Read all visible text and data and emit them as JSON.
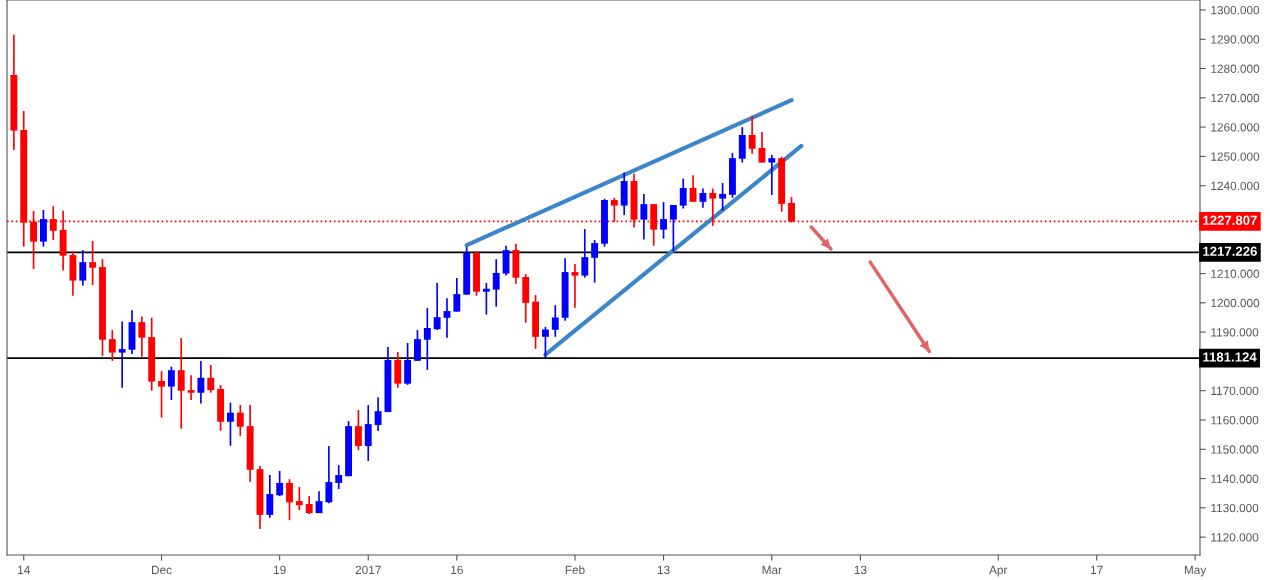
{
  "chart_data": {
    "type": "candlestick",
    "categories": [
      null,
      "14",
      null,
      null,
      null,
      null,
      null,
      null,
      null,
      null,
      null,
      null,
      null,
      null,
      null,
      "Dec",
      null,
      null,
      null,
      null,
      null,
      null,
      null,
      null,
      null,
      null,
      null,
      "19",
      null,
      null,
      null,
      null,
      null,
      null,
      null,
      null,
      "2017",
      null,
      null,
      null,
      null,
      null,
      null,
      null,
      null,
      "16",
      null,
      null,
      null,
      null,
      null,
      null,
      null,
      null,
      null,
      null,
      null,
      "Feb",
      null,
      null,
      null,
      null,
      null,
      null,
      null,
      null,
      "13",
      null,
      null,
      null,
      null,
      null,
      null,
      null,
      null,
      null,
      null,
      "Mar",
      null,
      null,
      null,
      null,
      null,
      null,
      null,
      null,
      "13",
      null,
      null,
      null,
      null,
      null,
      null,
      null,
      null,
      null,
      null,
      null,
      null,
      null,
      "Apr",
      null,
      null,
      null,
      null,
      null,
      null,
      null,
      null,
      null,
      "17",
      null,
      null,
      null,
      null,
      null,
      null,
      null,
      null,
      null,
      "May"
    ],
    "ohlc": [
      [
        1277.8,
        1291.5,
        1252.2,
        1258.8
      ],
      [
        1259.0,
        1265.5,
        1219.2,
        1227.4
      ],
      [
        1227.7,
        1231.4,
        1211.5,
        1220.9
      ],
      [
        1220.9,
        1231.7,
        1219.2,
        1228.6
      ],
      [
        1228.6,
        1233.0,
        1221.4,
        1224.6
      ],
      [
        1224.9,
        1231.4,
        1211.0,
        1216.1
      ],
      [
        1216.3,
        1217.5,
        1202.4,
        1207.6
      ],
      [
        1207.6,
        1218.0,
        1205.9,
        1213.9
      ],
      [
        1213.9,
        1221.1,
        1206.1,
        1212.0
      ],
      [
        1212.2,
        1214.9,
        1181.9,
        1187.4
      ],
      [
        1187.6,
        1190.7,
        1180.2,
        1183.0
      ],
      [
        1183.0,
        1193.6,
        1171.0,
        1184.2
      ],
      [
        1184.0,
        1197.5,
        1182.5,
        1193.4
      ],
      [
        1193.4,
        1195.3,
        1181.6,
        1188.1
      ],
      [
        1188.3,
        1194.9,
        1170.0,
        1173.1
      ],
      [
        1173.3,
        1176.7,
        1160.8,
        1171.4
      ],
      [
        1171.4,
        1178.2,
        1166.8,
        1177.0
      ],
      [
        1177.0,
        1188.0,
        1157.0,
        1170.0
      ],
      [
        1170.2,
        1175.3,
        1166.8,
        1169.3
      ],
      [
        1169.3,
        1180.1,
        1165.6,
        1174.4
      ],
      [
        1174.4,
        1178.8,
        1169.3,
        1170.2
      ],
      [
        1170.6,
        1171.9,
        1156.3,
        1159.4
      ],
      [
        1159.4,
        1165.9,
        1151.2,
        1162.5
      ],
      [
        1162.5,
        1165.1,
        1154.6,
        1157.7
      ],
      [
        1157.9,
        1165.1,
        1138.9,
        1143.0
      ],
      [
        1143.2,
        1144.3,
        1122.8,
        1127.6
      ],
      [
        1127.6,
        1141.2,
        1126.6,
        1134.7
      ],
      [
        1134.3,
        1142.6,
        1134.0,
        1138.5
      ],
      [
        1138.5,
        1139.8,
        1125.8,
        1131.9
      ],
      [
        1132.3,
        1137.1,
        1129.2,
        1130.9
      ],
      [
        1131.3,
        1134.0,
        1127.9,
        1128.2
      ],
      [
        1128.2,
        1135.7,
        1128.2,
        1132.3
      ],
      [
        1131.9,
        1151.1,
        1131.6,
        1138.8
      ],
      [
        1138.5,
        1144.6,
        1136.4,
        1141.2
      ],
      [
        1140.8,
        1159.6,
        1140.8,
        1157.9
      ],
      [
        1157.9,
        1163.4,
        1149.7,
        1151.1
      ],
      [
        1151.1,
        1165.1,
        1146.0,
        1158.6
      ],
      [
        1158.3,
        1167.8,
        1156.2,
        1163.0
      ],
      [
        1162.7,
        1184.9,
        1162.7,
        1180.5
      ],
      [
        1180.5,
        1183.2,
        1171.0,
        1172.4
      ],
      [
        1172.4,
        1186.3,
        1172.0,
        1180.5
      ],
      [
        1180.2,
        1190.7,
        1180.2,
        1187.6
      ],
      [
        1187.4,
        1198.2,
        1177.1,
        1191.4
      ],
      [
        1191.0,
        1206.8,
        1190.7,
        1195.1
      ],
      [
        1194.9,
        1201.6,
        1188.1,
        1197.2
      ],
      [
        1197.0,
        1208.5,
        1197.0,
        1203.0
      ],
      [
        1202.8,
        1219.2,
        1202.8,
        1217.1
      ],
      [
        1217.1,
        1217.5,
        1202.4,
        1203.8
      ],
      [
        1203.8,
        1206.8,
        1196.0,
        1204.8
      ],
      [
        1204.5,
        1214.9,
        1198.7,
        1210.2
      ],
      [
        1210.0,
        1219.5,
        1209.3,
        1218.0
      ],
      [
        1218.0,
        1220.2,
        1206.5,
        1208.6
      ],
      [
        1208.8,
        1209.8,
        1193.2,
        1200.0
      ],
      [
        1200.4,
        1202.7,
        1184.3,
        1188.4
      ],
      [
        1188.4,
        1191.8,
        1181.3,
        1190.9
      ],
      [
        1190.8,
        1199.2,
        1188.4,
        1195.0
      ],
      [
        1194.9,
        1215.2,
        1193.9,
        1210.5
      ],
      [
        1210.5,
        1213.3,
        1198.3,
        1209.3
      ],
      [
        1209.3,
        1225.2,
        1208.6,
        1215.6
      ],
      [
        1215.4,
        1221.4,
        1206.9,
        1220.4
      ],
      [
        1220.2,
        1235.5,
        1219.2,
        1235.1
      ],
      [
        1235.1,
        1235.9,
        1227.7,
        1233.2
      ],
      [
        1233.2,
        1244.5,
        1230.0,
        1241.6
      ],
      [
        1241.6,
        1244.1,
        1225.7,
        1228.4
      ],
      [
        1228.4,
        1237.2,
        1221.6,
        1233.7
      ],
      [
        1233.7,
        1233.7,
        1219.5,
        1225.0
      ],
      [
        1225.0,
        1234.4,
        1221.9,
        1228.6
      ],
      [
        1228.4,
        1233.4,
        1217.5,
        1233.4
      ],
      [
        1233.2,
        1242.4,
        1232.2,
        1239.2
      ],
      [
        1239.2,
        1243.6,
        1234.5,
        1234.5
      ],
      [
        1234.5,
        1239.0,
        1232.5,
        1237.5
      ],
      [
        1237.5,
        1239.0,
        1226.3,
        1235.6
      ],
      [
        1235.6,
        1240.9,
        1231.5,
        1237.2
      ],
      [
        1236.9,
        1251.2,
        1235.9,
        1249.4
      ],
      [
        1249.2,
        1260.0,
        1247.9,
        1257.3
      ],
      [
        1257.3,
        1263.8,
        1250.9,
        1252.6
      ],
      [
        1252.9,
        1258.3,
        1247.9,
        1247.9
      ],
      [
        1247.9,
        1250.5,
        1236.8,
        1249.4
      ],
      [
        1249.4,
        1249.9,
        1231.1,
        1233.8
      ],
      [
        1234.1,
        1236.1,
        1227.4,
        1227.8
      ],
      null,
      null,
      null,
      null,
      null,
      null,
      null,
      null,
      null,
      null,
      null,
      null,
      null,
      null,
      null,
      null,
      null,
      null,
      null,
      null,
      null,
      null,
      null,
      null,
      null,
      null,
      null,
      null,
      null,
      null,
      null,
      null,
      null,
      null,
      null,
      null,
      null,
      null,
      null,
      null,
      null
    ],
    "colors": [
      "#ff0000",
      "#ff0000",
      "#ff0000",
      "#0000ff",
      "#ff0000",
      "#ff0000",
      "#ff0000",
      "#0000ff",
      "#ff0000",
      "#ff0000",
      "#ff0000",
      "#0000ff",
      "#0000ff",
      "#ff0000",
      "#ff0000",
      "#ff0000",
      "#0000ff",
      "#ff0000",
      "#ff0000",
      "#0000ff",
      "#ff0000",
      "#ff0000",
      "#0000ff",
      "#ff0000",
      "#ff0000",
      "#ff0000",
      "#0000ff",
      "#0000ff",
      "#ff0000",
      "#ff0000",
      "#ff0000",
      "#0000ff",
      "#0000ff",
      "#0000ff",
      "#0000ff",
      "#ff0000",
      "#0000ff",
      "#0000ff",
      "#0000ff",
      "#ff0000",
      "#0000ff",
      "#0000ff",
      "#0000ff",
      "#0000ff",
      "#0000ff",
      "#0000ff",
      "#0000ff",
      "#ff0000",
      "#0000ff",
      "#0000ff",
      "#0000ff",
      "#ff0000",
      "#ff0000",
      "#ff0000",
      "#0000ff",
      "#0000ff",
      "#0000ff",
      "#ff0000",
      "#0000ff",
      "#0000ff",
      "#0000ff",
      "#ff0000",
      "#0000ff",
      "#ff0000",
      "#0000ff",
      "#ff0000",
      "#0000ff",
      "#0000ff",
      "#0000ff",
      "#ff0000",
      "#0000ff",
      "#ff0000",
      "#0000ff",
      "#0000ff",
      "#0000ff",
      "#ff0000",
      "#ff0000",
      "#0000ff",
      "#ff0000",
      "#ff0000",
      null,
      null,
      null,
      null,
      null,
      null,
      null,
      null,
      null,
      null,
      null,
      null,
      null,
      null,
      null,
      null,
      null,
      null,
      null,
      null,
      null,
      null,
      null,
      null,
      null,
      null,
      null,
      null,
      null,
      null,
      null,
      null,
      null,
      null,
      null,
      null,
      null,
      null,
      null,
      null,
      null
    ],
    "series": [
      {
        "type": "line",
        "color": "#3d85c6",
        "values": [
          null,
          null,
          null,
          null,
          null,
          null,
          null,
          null,
          null,
          null,
          null,
          null,
          null,
          null,
          null,
          null,
          null,
          null,
          null,
          null,
          null,
          null,
          null,
          null,
          null,
          null,
          null,
          null,
          null,
          null,
          null,
          null,
          null,
          null,
          null,
          null,
          null,
          null,
          null,
          null,
          null,
          null,
          null,
          null,
          null,
          null,
          1219.7,
          null,
          null,
          null,
          null,
          null,
          null,
          null,
          null,
          null,
          null,
          null,
          null,
          null,
          null,
          null,
          null,
          null,
          null,
          null,
          null,
          null,
          null,
          null,
          null,
          null,
          null,
          null,
          null,
          null,
          null,
          null,
          null,
          1269.2,
          null,
          null,
          null,
          null,
          null,
          null,
          null,
          null,
          null,
          null,
          null,
          null,
          null,
          null,
          null,
          null,
          null,
          null,
          null,
          null,
          null,
          null,
          null,
          null,
          null,
          null,
          null,
          null,
          null,
          null,
          null,
          null,
          null,
          null,
          null,
          null,
          null,
          null,
          null,
          null,
          null
        ]
      },
      {
        "type": "line",
        "color": "#3d85c6",
        "values": [
          null,
          null,
          null,
          null,
          null,
          null,
          null,
          null,
          null,
          null,
          null,
          null,
          null,
          null,
          null,
          null,
          null,
          null,
          null,
          null,
          null,
          null,
          null,
          null,
          null,
          null,
          null,
          null,
          null,
          null,
          null,
          null,
          null,
          null,
          null,
          null,
          null,
          null,
          null,
          null,
          null,
          null,
          null,
          null,
          null,
          null,
          null,
          null,
          null,
          null,
          null,
          null,
          null,
          null,
          1182.3,
          null,
          null,
          null,
          null,
          null,
          null,
          null,
          null,
          null,
          null,
          null,
          null,
          null,
          null,
          null,
          null,
          null,
          null,
          null,
          null,
          null,
          null,
          null,
          null,
          null,
          1253.6,
          null,
          null,
          null,
          null,
          null,
          null,
          null,
          null,
          null,
          null,
          null,
          null,
          null,
          null,
          null,
          null,
          null,
          null,
          null,
          null,
          null,
          null,
          null,
          null,
          null,
          null,
          null,
          null,
          null,
          null,
          null,
          null,
          null,
          null,
          null,
          null,
          null,
          null,
          null,
          null
        ]
      },
      {
        "type": "line",
        "color": "#e06666",
        "values": [
          null,
          null,
          null,
          null,
          null,
          null,
          null,
          null,
          null,
          null,
          null,
          null,
          null,
          null,
          null,
          null,
          null,
          null,
          null,
          null,
          null,
          null,
          null,
          null,
          null,
          null,
          null,
          null,
          null,
          null,
          null,
          null,
          null,
          null,
          null,
          null,
          null,
          null,
          null,
          null,
          null,
          null,
          null,
          null,
          null,
          null,
          null,
          null,
          null,
          null,
          null,
          null,
          null,
          null,
          null,
          null,
          null,
          null,
          null,
          null,
          null,
          null,
          null,
          null,
          null,
          null,
          null,
          null,
          null,
          null,
          null,
          null,
          null,
          null,
          null,
          null,
          null,
          null,
          null,
          null,
          null,
          1225.9,
          null,
          1218.4,
          null,
          null,
          null,
          null,
          null,
          null,
          null,
          null,
          null,
          null,
          null,
          null,
          null,
          null,
          null,
          null,
          null,
          null,
          null,
          null,
          null,
          null,
          null,
          null,
          null,
          null,
          null,
          null,
          null,
          null,
          null,
          null,
          null,
          null,
          null,
          null,
          null
        ]
      },
      {
        "type": "line",
        "color": "#e06666",
        "values": [
          null,
          null,
          null,
          null,
          null,
          null,
          null,
          null,
          null,
          null,
          null,
          null,
          null,
          null,
          null,
          null,
          null,
          null,
          null,
          null,
          null,
          null,
          null,
          null,
          null,
          null,
          null,
          null,
          null,
          null,
          null,
          null,
          null,
          null,
          null,
          null,
          null,
          null,
          null,
          null,
          null,
          null,
          null,
          null,
          null,
          null,
          null,
          null,
          null,
          null,
          null,
          null,
          null,
          null,
          null,
          null,
          null,
          null,
          null,
          null,
          null,
          null,
          null,
          null,
          null,
          null,
          null,
          null,
          null,
          null,
          null,
          null,
          null,
          null,
          null,
          null,
          null,
          null,
          null,
          null,
          null,
          null,
          null,
          null,
          null,
          null,
          null,
          1213.9,
          null,
          null,
          null,
          null,
          null,
          1183.4,
          null,
          null,
          null,
          null,
          null,
          null,
          null,
          null,
          null,
          null,
          null,
          null,
          null,
          null,
          null,
          null,
          null,
          null,
          null,
          null,
          null,
          null,
          null,
          null,
          null,
          null,
          null
        ]
      }
    ],
    "ref_lines": [
      {
        "axis": "y",
        "value": 1227.807,
        "label": "1227.807",
        "color": "#ff0000",
        "line_style": "dotted"
      },
      {
        "axis": "y",
        "value": 1217.226,
        "label": "1217.226",
        "color": "#000000",
        "line_style": "solid"
      },
      {
        "axis": "y",
        "value": 1181.124,
        "label": "1181.124",
        "color": "#000000",
        "line_style": "solid"
      }
    ],
    "ylim": [
      1113.9,
      1303.4
    ],
    "yticks": [
      {
        "value": 1120,
        "label": "1120.000"
      },
      {
        "value": 1130,
        "label": "1130.000"
      },
      {
        "value": 1140,
        "label": "1140.000"
      },
      {
        "value": 1150,
        "label": "1150.000"
      },
      {
        "value": 1160,
        "label": "1160.000"
      },
      {
        "value": 1170,
        "label": "1170.000"
      },
      {
        "value": 1180,
        "label": null
      },
      {
        "value": 1190,
        "label": "1190.000"
      },
      {
        "value": 1200,
        "label": "1200.000"
      },
      {
        "value": 1210,
        "label": "1210.000"
      },
      {
        "value": 1220,
        "label": null
      },
      {
        "value": 1230,
        "label": null
      },
      {
        "value": 1240,
        "label": "1240.000"
      },
      {
        "value": 1250,
        "label": "1250.000"
      },
      {
        "value": 1260,
        "label": "1260.000"
      },
      {
        "value": 1270,
        "label": "1270.000"
      },
      {
        "value": 1280,
        "label": "1280.000"
      },
      {
        "value": 1290,
        "label": "1290.000"
      },
      {
        "value": 1300,
        "label": "1300.000"
      }
    ],
    "grid": false
  }
}
